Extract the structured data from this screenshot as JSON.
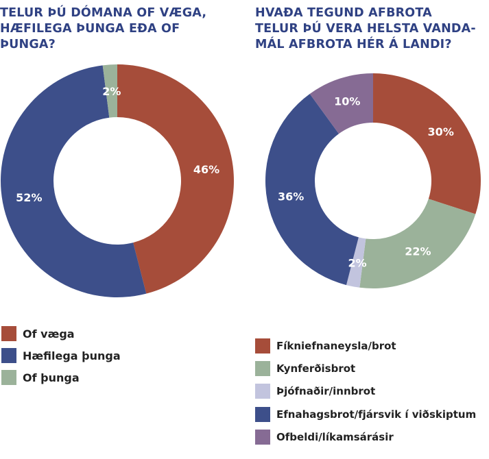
{
  "chart_data": [
    {
      "type": "donut",
      "title": "Telur þú dómana of væga, hæfilega þunga eða of þunga?",
      "categories": [
        "Of væga",
        "Hæfilega þunga",
        "Of þunga"
      ],
      "values": [
        46,
        52,
        2
      ],
      "value_labels": [
        "46%",
        "52%",
        "2%"
      ],
      "unit": "%",
      "colors": [
        "#a64d3a",
        "#3d4f8a",
        "#9bb29a"
      ],
      "legend_position": "bottom-left"
    },
    {
      "type": "donut",
      "title": "Hvaða tegund afbrota telur þú vera helsta vanda-mál afbrota hér á landi?",
      "categories": [
        "Fíkniefnaneysla/brot",
        "Kynferðisbrot",
        "Þjófnaðir/innbrot",
        "Efnahagsbrot/fjársvik í viðskiptum",
        "Ofbeldi/líkamsárásir"
      ],
      "values": [
        30,
        22,
        2,
        36,
        10
      ],
      "value_labels": [
        "30%",
        "22%",
        "2%",
        "36%",
        "10%"
      ],
      "unit": "%",
      "colors": [
        "#a64d3a",
        "#9bb29a",
        "#c2c4de",
        "#3d4f8a",
        "#866b94"
      ],
      "legend_position": "bottom-left"
    }
  ]
}
